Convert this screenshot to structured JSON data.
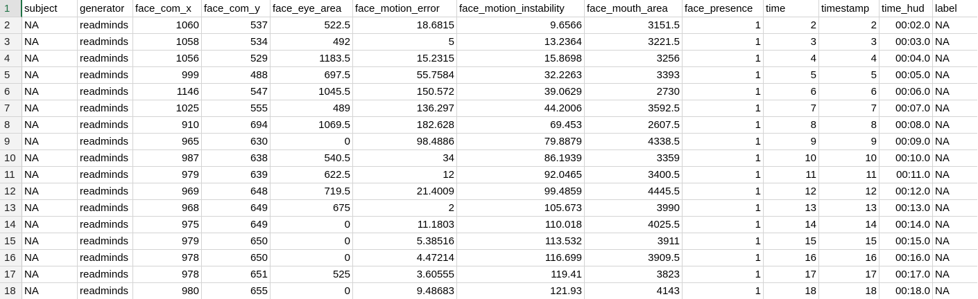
{
  "sheet": {
    "header": {
      "row_number": "1",
      "columns": [
        "subject",
        "generator",
        "face_com_x",
        "face_com_y",
        "face_eye_area",
        "face_motion_error",
        "face_motion_instability",
        "face_mouth_area",
        "face_presence",
        "time",
        "timestamp",
        "time_hud",
        "label"
      ]
    },
    "rows": [
      {
        "n": "2",
        "cells": [
          "NA",
          "readminds",
          "1060",
          "537",
          "522.5",
          "18.6815",
          "9.6566",
          "3151.5",
          "1",
          "2",
          "2",
          "00:02.0",
          "NA"
        ]
      },
      {
        "n": "3",
        "cells": [
          "NA",
          "readminds",
          "1058",
          "534",
          "492",
          "5",
          "13.2364",
          "3221.5",
          "1",
          "3",
          "3",
          "00:03.0",
          "NA"
        ]
      },
      {
        "n": "4",
        "cells": [
          "NA",
          "readminds",
          "1056",
          "529",
          "1183.5",
          "15.2315",
          "15.8698",
          "3256",
          "1",
          "4",
          "4",
          "00:04.0",
          "NA"
        ]
      },
      {
        "n": "5",
        "cells": [
          "NA",
          "readminds",
          "999",
          "488",
          "697.5",
          "55.7584",
          "32.2263",
          "3393",
          "1",
          "5",
          "5",
          "00:05.0",
          "NA"
        ]
      },
      {
        "n": "6",
        "cells": [
          "NA",
          "readminds",
          "1146",
          "547",
          "1045.5",
          "150.572",
          "39.0629",
          "2730",
          "1",
          "6",
          "6",
          "00:06.0",
          "NA"
        ]
      },
      {
        "n": "7",
        "cells": [
          "NA",
          "readminds",
          "1025",
          "555",
          "489",
          "136.297",
          "44.2006",
          "3592.5",
          "1",
          "7",
          "7",
          "00:07.0",
          "NA"
        ]
      },
      {
        "n": "8",
        "cells": [
          "NA",
          "readminds",
          "910",
          "694",
          "1069.5",
          "182.628",
          "69.453",
          "2607.5",
          "1",
          "8",
          "8",
          "00:08.0",
          "NA"
        ]
      },
      {
        "n": "9",
        "cells": [
          "NA",
          "readminds",
          "965",
          "630",
          "0",
          "98.4886",
          "79.8879",
          "4338.5",
          "1",
          "9",
          "9",
          "00:09.0",
          "NA"
        ]
      },
      {
        "n": "10",
        "cells": [
          "NA",
          "readminds",
          "987",
          "638",
          "540.5",
          "34",
          "86.1939",
          "3359",
          "1",
          "10",
          "10",
          "00:10.0",
          "NA"
        ]
      },
      {
        "n": "11",
        "cells": [
          "NA",
          "readminds",
          "979",
          "639",
          "622.5",
          "12",
          "92.0465",
          "3400.5",
          "1",
          "11",
          "11",
          "00:11.0",
          "NA"
        ]
      },
      {
        "n": "12",
        "cells": [
          "NA",
          "readminds",
          "969",
          "648",
          "719.5",
          "21.4009",
          "99.4859",
          "4445.5",
          "1",
          "12",
          "12",
          "00:12.0",
          "NA"
        ]
      },
      {
        "n": "13",
        "cells": [
          "NA",
          "readminds",
          "968",
          "649",
          "675",
          "2",
          "105.673",
          "3990",
          "1",
          "13",
          "13",
          "00:13.0",
          "NA"
        ]
      },
      {
        "n": "14",
        "cells": [
          "NA",
          "readminds",
          "975",
          "649",
          "0",
          "11.1803",
          "110.018",
          "4025.5",
          "1",
          "14",
          "14",
          "00:14.0",
          "NA"
        ]
      },
      {
        "n": "15",
        "cells": [
          "NA",
          "readminds",
          "979",
          "650",
          "0",
          "5.38516",
          "113.532",
          "3911",
          "1",
          "15",
          "15",
          "00:15.0",
          "NA"
        ]
      },
      {
        "n": "16",
        "cells": [
          "NA",
          "readminds",
          "978",
          "650",
          "0",
          "4.47214",
          "116.699",
          "3909.5",
          "1",
          "16",
          "16",
          "00:16.0",
          "NA"
        ]
      },
      {
        "n": "17",
        "cells": [
          "NA",
          "readminds",
          "978",
          "651",
          "525",
          "3.60555",
          "119.41",
          "3823",
          "1",
          "17",
          "17",
          "00:17.0",
          "NA"
        ]
      },
      {
        "n": "18",
        "cells": [
          "NA",
          "readminds",
          "980",
          "655",
          "0",
          "9.48683",
          "121.93",
          "4143",
          "1",
          "18",
          "18",
          "00:18.0",
          "NA"
        ]
      }
    ],
    "colors": {
      "active_row_header": "#217346",
      "gridline": "#d4d4d4",
      "row_header_bg": "#f3f3f3"
    }
  }
}
